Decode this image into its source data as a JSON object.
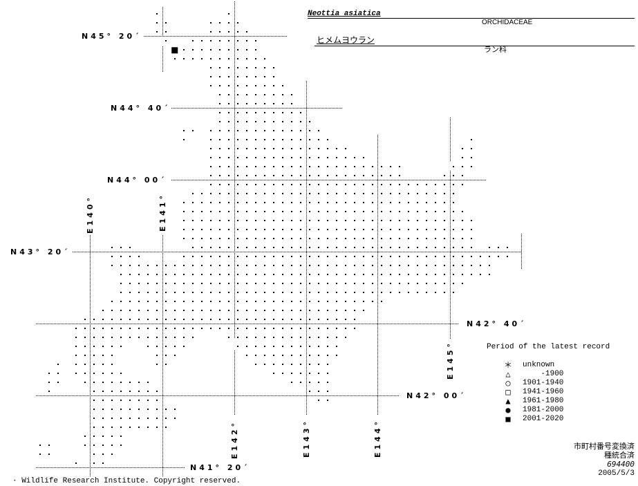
{
  "header": {
    "scientific_name": "Neottia asiatica",
    "family_latin": "ORCHIDACEAE",
    "japanese_name": "ヒメムヨウラン",
    "family_japanese": "ラン科"
  },
  "map": {
    "latitude_labels": [
      "N45° 20´",
      "N44° 40´",
      "N44° 00´",
      "N43° 20´",
      "N42° 40´",
      "N42° 00´",
      "N41° 20´"
    ],
    "longitude_labels": [
      "E140°",
      "E141°",
      "E142°",
      "E143°",
      "E144°",
      "E145°"
    ],
    "records": [
      {
        "lat": 45.2,
        "lon": 141.18,
        "period": "2001-2020",
        "symbol": "filled-square"
      }
    ]
  },
  "legend": {
    "title": "Period of the latest record",
    "items": [
      {
        "symbol": "asterisk",
        "glyph": "＊",
        "label": "unknown"
      },
      {
        "symbol": "open-triangle",
        "glyph": "△",
        "label": "    -1900"
      },
      {
        "symbol": "open-circle",
        "glyph": "○",
        "label": "1901-1940"
      },
      {
        "symbol": "open-square",
        "glyph": "□",
        "label": "1941-1960"
      },
      {
        "symbol": "filled-triangle",
        "glyph": "▲",
        "label": "1961-1980"
      },
      {
        "symbol": "filled-circle",
        "glyph": "●",
        "label": "1981-2000"
      },
      {
        "symbol": "filled-square",
        "glyph": "■",
        "label": "2001-2020"
      }
    ]
  },
  "footer": {
    "note1": "市町村番号変換済",
    "note2": "種統合済",
    "code": "694400",
    "date": "2005/5/3",
    "copyright": "· Wildlife Research Institute. Copyright reserved."
  }
}
